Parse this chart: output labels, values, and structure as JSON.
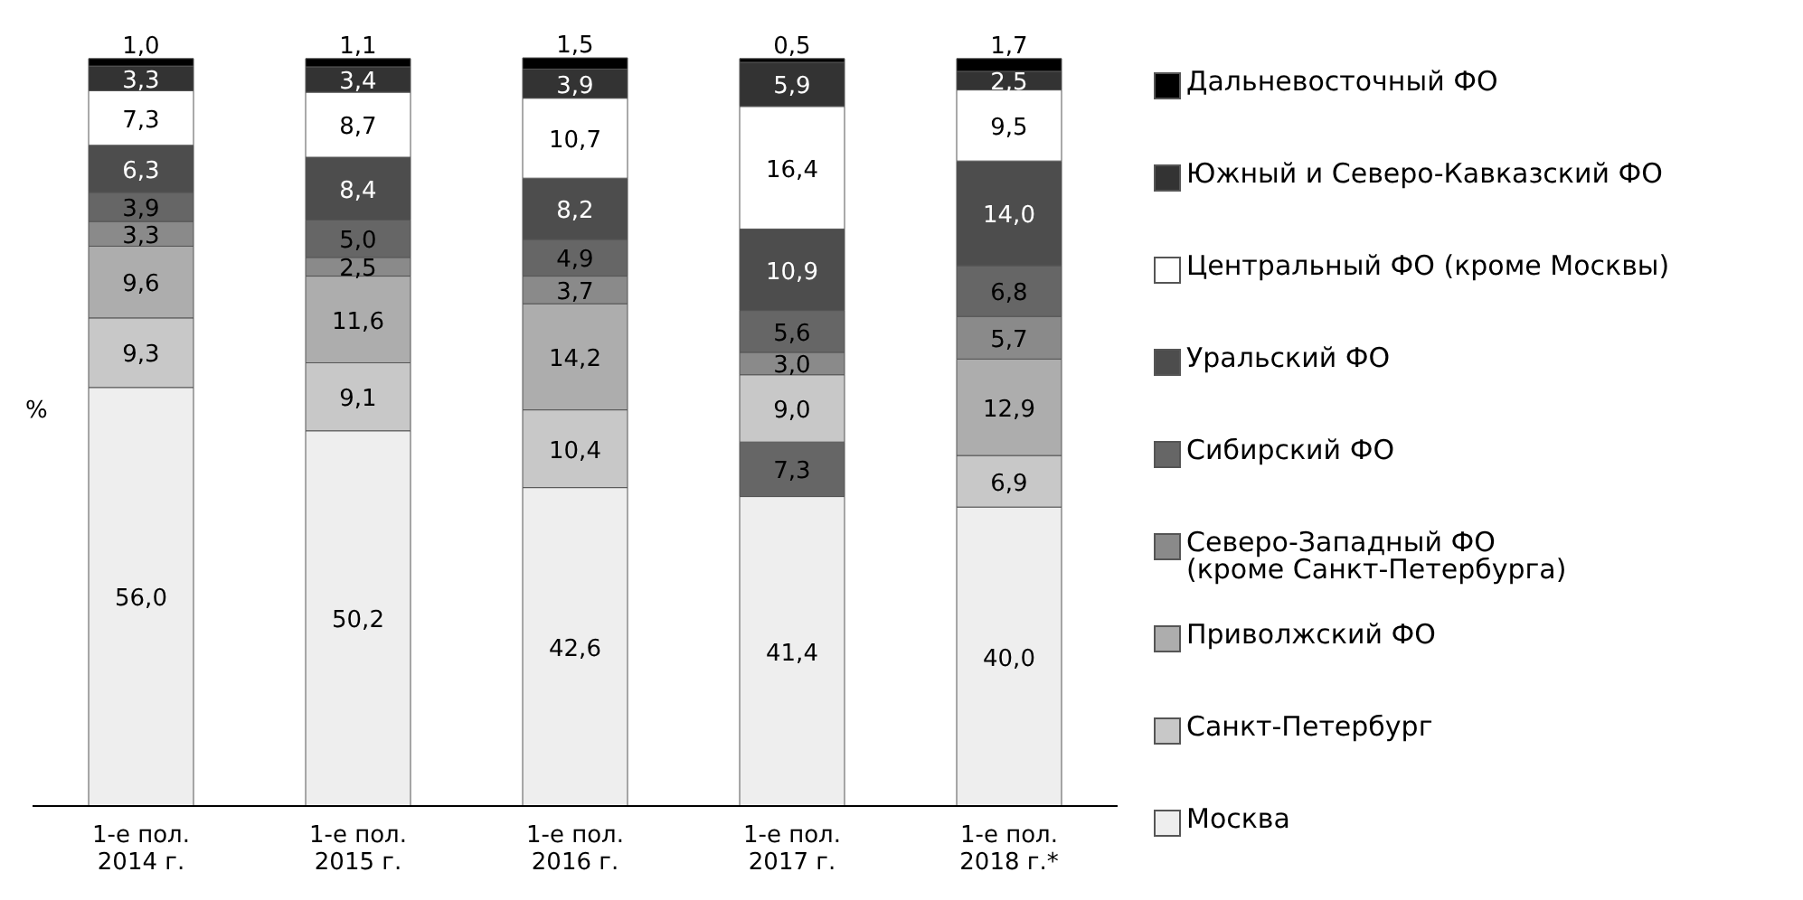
{
  "chart_data": {
    "type": "bar",
    "stacked": true,
    "ylabel": "%",
    "legend": "right",
    "categories": [
      "1-е пол. 2014 г.",
      "1-е пол. 2015 г.",
      "1-е пол. 2016 г.",
      "1-е пол. 2017 г.",
      "1-е пол. 2018 г.*"
    ],
    "series": [
      {
        "name": "Москва",
        "color": "#eeeeee",
        "values": [
          56.0,
          50.2,
          42.6,
          41.4,
          40.0
        ],
        "value_labels": [
          "56,0",
          "50,2",
          "42,6",
          "41,4",
          "40,0"
        ]
      },
      {
        "name": "Санкт-Петербург",
        "color": "#c8c8c8",
        "colors": [
          "#c8c8c8",
          "#c8c8c8",
          "#c8c8c8",
          "#666666",
          "#c8c8c8"
        ],
        "values": [
          9.3,
          9.1,
          10.4,
          7.3,
          6.9
        ],
        "value_labels": [
          "9,3",
          "9,1",
          "10,4",
          "7,3",
          "6,9"
        ]
      },
      {
        "name": "Приволжский ФО",
        "color": "#adadad",
        "colors": [
          "#adadad",
          "#adadad",
          "#adadad",
          "#c8c8c8",
          "#adadad"
        ],
        "values": [
          9.6,
          11.6,
          14.2,
          9.0,
          12.9
        ],
        "value_labels": [
          "9,6",
          "11,6",
          "14,2",
          "9,0",
          "12,9"
        ]
      },
      {
        "name": "Северо-Западный ФО\n(кроме Санкт-Петербурга)",
        "color": "#8a8a8a",
        "values": [
          3.3,
          2.5,
          3.7,
          3.0,
          5.7
        ],
        "value_labels": [
          "3,3",
          "2,5",
          "3,7",
          "3,0",
          "5,7"
        ]
      },
      {
        "name": "Сибирский ФО",
        "color": "#666666",
        "values": [
          3.9,
          5.0,
          4.9,
          5.6,
          6.8
        ],
        "value_labels": [
          "3,9",
          "5,0",
          "4,9",
          "5,6",
          "6,8"
        ]
      },
      {
        "name": "Уральский ФО",
        "color": "#4d4d4d",
        "values": [
          6.3,
          8.4,
          8.2,
          10.9,
          14.0
        ],
        "value_labels": [
          "6,3",
          "8,4",
          "8,2",
          "10,9",
          "14,0"
        ]
      },
      {
        "name": "Центральный ФО (кроме Москвы)",
        "color": "#ffffff",
        "values": [
          7.3,
          8.7,
          10.7,
          16.4,
          9.5
        ],
        "value_labels": [
          "7,3",
          "8,7",
          "10,7",
          "16,4",
          "9,5"
        ]
      },
      {
        "name": "Южный и Северо-Кавказский ФО",
        "color": "#333333",
        "values": [
          3.3,
          3.4,
          3.9,
          5.9,
          2.5
        ],
        "value_labels": [
          "3,3",
          "3,4",
          "3,9",
          "5,9",
          "2,5"
        ]
      },
      {
        "name": "Дальневосточный ФО",
        "color": "#000000",
        "values": [
          1.0,
          1.1,
          1.5,
          0.5,
          1.7
        ],
        "value_labels": [
          "1,0",
          "1,1",
          "1,5",
          "0,5",
          "1,7"
        ]
      }
    ]
  }
}
